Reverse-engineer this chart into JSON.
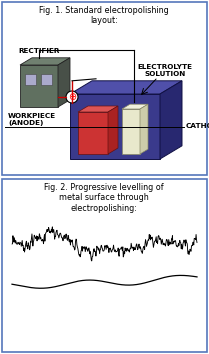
{
  "fig_width": 2.09,
  "fig_height": 3.54,
  "dpi": 100,
  "bg_color": "#ffffff",
  "border_color": "#5577bb",
  "fig1_title": "Fig. 1. Standard electropolishing\nlayout:",
  "fig2_title": "Fig. 2. Progressive levelling of\nmetal surface through\nelectropolishing:",
  "label_rectifier": "RECTIFIER",
  "label_electrolyte": "ELECTROLYTE\nSOLUTION",
  "label_workpiece": "WORKPIECE\n(ANODE)",
  "label_cathode": "CATHODE",
  "rectifier_front": "#607060",
  "rectifier_top": "#708070",
  "rectifier_right": "#485048",
  "tank_front": "#3a3a8c",
  "tank_top": "#5050aa",
  "tank_right": "#282870",
  "workpiece_front": "#cc3333",
  "workpiece_top": "#dd5555",
  "workpiece_right": "#aa2222",
  "cathode_color": "#e8e8cc",
  "wire_color": "#cc0000",
  "text_color": "#000000",
  "label_fontsize": 5.2,
  "title_fontsize": 5.8
}
